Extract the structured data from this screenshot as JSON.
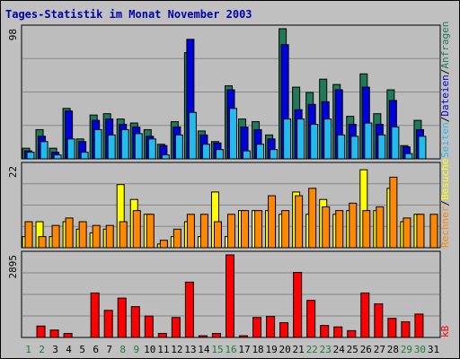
{
  "chart_data": {
    "title": "Tages-Statistik im Monat November 2003",
    "type": "bar",
    "categories": [
      "1",
      "2",
      "3",
      "4",
      "5",
      "6",
      "7",
      "8",
      "9",
      "10",
      "11",
      "12",
      "13",
      "14",
      "15",
      "16",
      "17",
      "18",
      "19",
      "20",
      "21",
      "22",
      "23",
      "24",
      "25",
      "26",
      "27",
      "28",
      "29",
      "30",
      "31"
    ],
    "weekend_days": [
      "1",
      "2",
      "8",
      "9",
      "15",
      "16",
      "22",
      "23",
      "29",
      "30"
    ],
    "panels": [
      {
        "name": "hits",
        "max_label": "98",
        "ymax": 98,
        "series": [
          {
            "name": "Anfragen",
            "color": "#1f7a5a",
            "values": [
              8,
              22,
              8,
              38,
              15,
              33,
              34,
              30,
              27,
              22,
              11,
              28,
              80,
              21,
              13,
              55,
              30,
              28,
              18,
              98,
              54,
              50,
              60,
              56,
              32,
              64,
              34,
              52,
              10,
              29,
              0
            ]
          },
          {
            "name": "Dateien",
            "color": "#0000dd",
            "values": [
              6,
              17,
              5,
              36,
              13,
              29,
              30,
              26,
              24,
              17,
              10,
              24,
              90,
              18,
              12,
              52,
              24,
              22,
              15,
              86,
              37,
              41,
              43,
              52,
              26,
              54,
              26,
              44,
              9,
              22,
              0
            ]
          },
          {
            "name": "Seiten",
            "color": "#22bbee",
            "values": [
              5,
              13,
              3,
              15,
              5,
              22,
              18,
              22,
              19,
              15,
              3,
              18,
              35,
              11,
              7,
              38,
              6,
              11,
              7,
              30,
              30,
              26,
              30,
              18,
              17,
              27,
              18,
              24,
              4,
              17,
              0
            ]
          }
        ]
      },
      {
        "name": "visits",
        "max_label": "22",
        "ymax": 22,
        "series": [
          {
            "name": "Besuche",
            "color": "#ffff00",
            "values": [
              3,
              7,
              3,
              7,
              5,
              4,
              5,
              17,
              13,
              9,
              1,
              3,
              7,
              3,
              15,
              3,
              10,
              10,
              10,
              9,
              15,
              9,
              13,
              9,
              10,
              21,
              10,
              16,
              7,
              9,
              0
            ]
          },
          {
            "name": "Rechner",
            "color": "#ff8800",
            "values": [
              7,
              3,
              6,
              8,
              7,
              6,
              6,
              7,
              10,
              9,
              2,
              5,
              9,
              9,
              7,
              9,
              10,
              10,
              14,
              10,
              14,
              16,
              11,
              10,
              12,
              10,
              11,
              19,
              8,
              9,
              9
            ]
          }
        ]
      },
      {
        "name": "kb",
        "max_label": "2895",
        "ymax": 2895,
        "series": [
          {
            "name": "kB",
            "color": "#ff0000",
            "values": [
              0,
              400,
              260,
              140,
              0,
              1560,
              950,
              1380,
              1080,
              750,
              140,
              700,
              1940,
              60,
              140,
              2895,
              60,
              700,
              740,
              520,
              2280,
              1300,
              420,
              370,
              240,
              1560,
              1180,
              670,
              550,
              820,
              0
            ]
          }
        ]
      }
    ],
    "right_axis": {
      "hits_labels": [
        "Anfragen",
        "Dateien",
        "Seiten"
      ],
      "hits_separator": "/",
      "visits_labels": [
        "Besuche",
        "Rechner"
      ],
      "visits_separator": "/",
      "kb_label": "kB"
    }
  }
}
